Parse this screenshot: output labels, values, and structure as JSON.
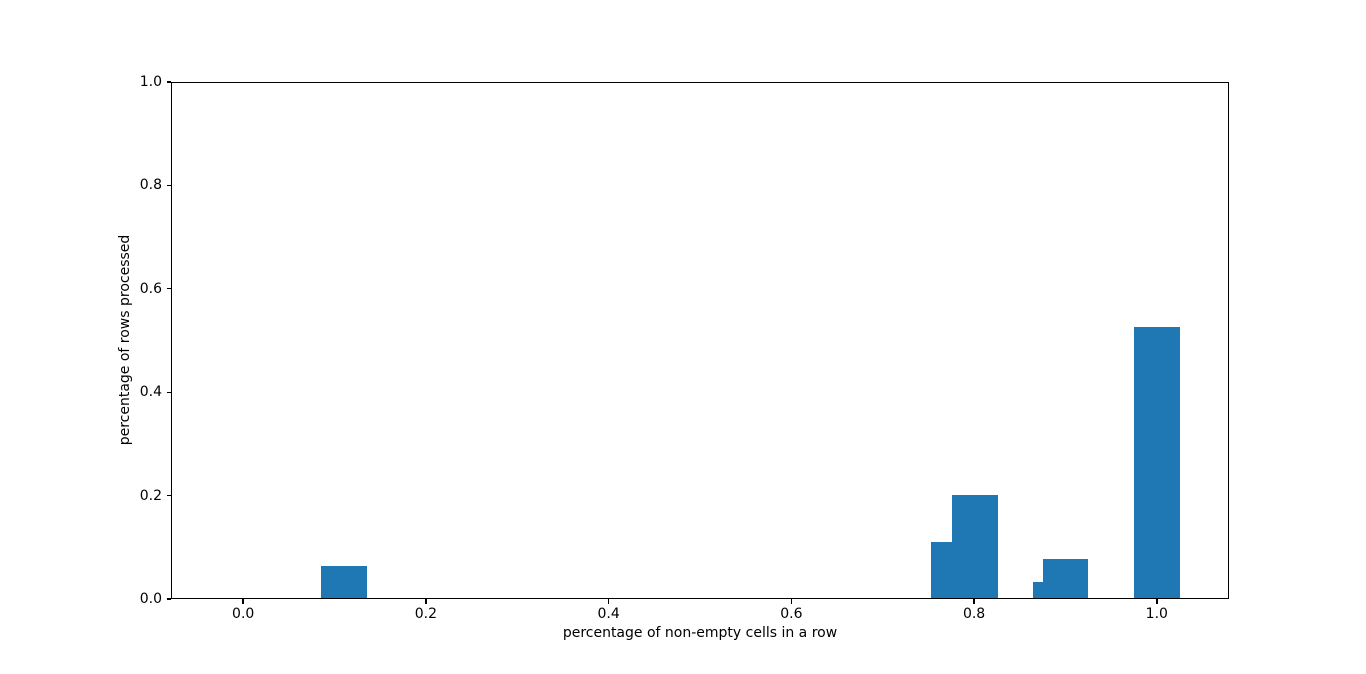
{
  "figure": {
    "background": "#ffffff"
  },
  "chart_data": {
    "type": "bar",
    "title": "",
    "xlabel": "percentage of non-empty cells in a row",
    "ylabel": "percentage of rows processed",
    "xlim": [
      -0.079,
      1.079
    ],
    "ylim": [
      0,
      1.0
    ],
    "grid": false,
    "legend": null,
    "bar_color": "#1f77b4",
    "axis_color": "#000000",
    "x_ticks": [
      {
        "value": 0.0,
        "label": "0.0"
      },
      {
        "value": 0.2,
        "label": "0.2"
      },
      {
        "value": 0.4,
        "label": "0.4"
      },
      {
        "value": 0.6,
        "label": "0.6"
      },
      {
        "value": 0.8,
        "label": "0.8"
      },
      {
        "value": 1.0,
        "label": "1.0"
      }
    ],
    "y_ticks": [
      {
        "value": 0.0,
        "label": "0.0"
      },
      {
        "value": 0.2,
        "label": "0.2"
      },
      {
        "value": 0.4,
        "label": "0.4"
      },
      {
        "value": 0.6,
        "label": "0.6"
      },
      {
        "value": 0.8,
        "label": "0.8"
      },
      {
        "value": 1.0,
        "label": "1.0"
      }
    ],
    "bars": [
      {
        "x_left": 0.085,
        "width": 0.05,
        "height": 0.062
      },
      {
        "x_left": 0.753,
        "width": 0.05,
        "height": 0.108
      },
      {
        "x_left": 0.776,
        "width": 0.05,
        "height": 0.199
      },
      {
        "x_left": 0.864,
        "width": 0.05,
        "height": 0.031
      },
      {
        "x_left": 0.875,
        "width": 0.05,
        "height": 0.075
      },
      {
        "x_left": 0.975,
        "width": 0.05,
        "height": 0.524
      }
    ]
  }
}
